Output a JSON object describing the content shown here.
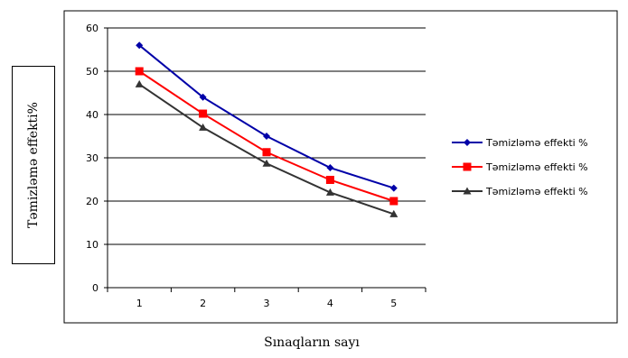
{
  "chart_data": {
    "type": "line",
    "title": "",
    "xlabel": "Sınaqların sayı",
    "ylabel": "Təmizləmə effekti%",
    "categories": [
      "1",
      "2",
      "3",
      "4",
      "5"
    ],
    "ylim": [
      0,
      60
    ],
    "yticks": [
      "0",
      "10",
      "20",
      "30",
      "40",
      "50",
      "60"
    ],
    "grid": true,
    "legend_position": "right",
    "series": [
      {
        "name": "Təmizləmə effekti %",
        "color": "#0000a8",
        "marker": "diamond",
        "values": [
          56,
          44,
          35,
          27.7,
          23
        ]
      },
      {
        "name": "Təmizləmə effekti %",
        "color": "#ff0000",
        "marker": "square",
        "values": [
          50,
          40.2,
          31.3,
          24.9,
          20
        ]
      },
      {
        "name": "Təmizləmə effekti %",
        "color": "#333333",
        "marker": "triangle",
        "values": [
          47,
          37,
          28.7,
          22,
          17
        ]
      }
    ]
  }
}
